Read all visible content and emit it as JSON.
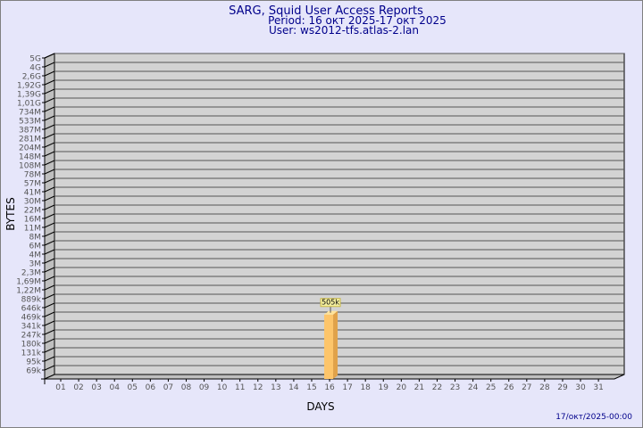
{
  "chart_data": {
    "type": "bar",
    "title": "SARG, Squid User Access Reports",
    "subtitle_period": "Period: 16 окт 2025-17 окт 2025",
    "subtitle_user": "User: ws2012-tfs.atlas-2.lan",
    "xlabel": "DAYS",
    "ylabel": "BYTES",
    "footer": "17/окт/2025-00:00",
    "y_scale": "log",
    "y_ticks": [
      "5G",
      "4G",
      "2,6G",
      "1,92G",
      "1,39G",
      "1,01G",
      "734M",
      "533M",
      "387M",
      "281M",
      "204M",
      "148M",
      "108M",
      "78M",
      "57M",
      "41M",
      "30M",
      "22M",
      "16M",
      "11M",
      "8M",
      "6M",
      "4M",
      "3M",
      "2,3M",
      "1,69M",
      "1,22M",
      "889k",
      "646k",
      "469k",
      "341k",
      "247k",
      "180k",
      "131k",
      "95k",
      "69k"
    ],
    "categories": [
      "01",
      "02",
      "03",
      "04",
      "05",
      "06",
      "07",
      "08",
      "09",
      "10",
      "11",
      "12",
      "13",
      "14",
      "15",
      "16",
      "17",
      "18",
      "19",
      "20",
      "21",
      "22",
      "23",
      "24",
      "25",
      "26",
      "27",
      "28",
      "29",
      "30",
      "31"
    ],
    "bars": [
      {
        "day": "16",
        "value": 505000,
        "label": "505k"
      }
    ],
    "grid": true,
    "colors": {
      "bar": "#fdc56a",
      "bar_side": "#e0a24a",
      "plot_bg": "#d3d3d3",
      "page_bg": "#e6e6fa",
      "text": "#00008b"
    }
  }
}
